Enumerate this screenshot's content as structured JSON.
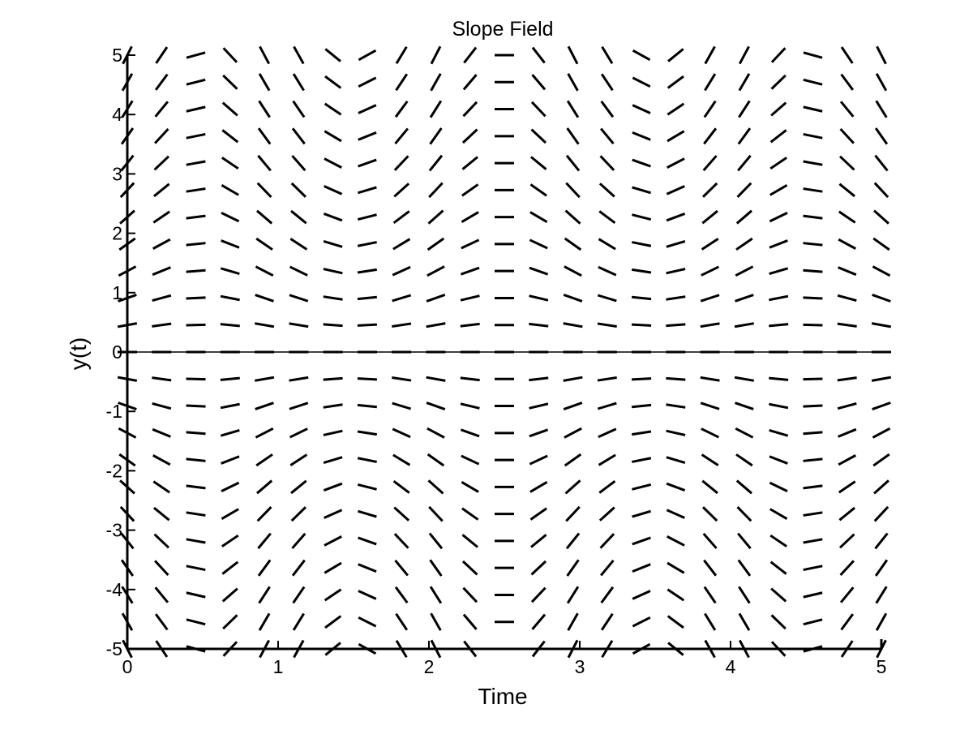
{
  "chart_data": {
    "type": "quiver",
    "title": "Slope Field",
    "xlabel": "Time",
    "ylabel": "y(t)",
    "xlim": [
      0,
      5
    ],
    "ylim": [
      -5,
      5
    ],
    "xticks": [
      0,
      1,
      2,
      3,
      4,
      5
    ],
    "yticks": [
      -5,
      -4,
      -3,
      -2,
      -1,
      0,
      1,
      2,
      3,
      4,
      5
    ],
    "xtick_labels": [
      "0",
      "1",
      "2",
      "3",
      "4",
      "5"
    ],
    "ytick_labels": [
      "-5",
      "-4",
      "-3",
      "-2",
      "-1",
      "0",
      "1",
      "2",
      "3",
      "4",
      "5"
    ],
    "grid": false,
    "legend": "none",
    "field": {
      "equation": "dy/dt = y*cos(pi*t)",
      "t_range": [
        0,
        5
      ],
      "t_count": 23,
      "y_range": [
        -5,
        5
      ],
      "y_count": 23
    },
    "colors": {
      "segments": "#000000",
      "axes": "#000000",
      "background": "#ffffff"
    }
  }
}
